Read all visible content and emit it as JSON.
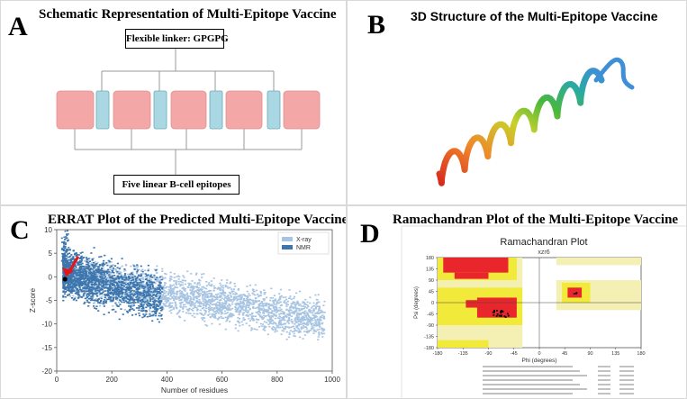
{
  "panels": {
    "a": {
      "letter": "A",
      "title": "Schematic Representation of Multi-Epitope Vaccine",
      "linker_label": "Flexible linker: GPGPG",
      "epitope_label": "Five linear B-cell epitopes",
      "colors": {
        "epitope": "#f4a7a7",
        "linker": "#a9d7e2"
      }
    },
    "b": {
      "letter": "B",
      "title": "3D Structure of the Multi-Epitope Vaccine"
    },
    "c": {
      "letter": "C",
      "title": "ERRAT Plot of the Predicted Multi-Epitope Vaccine",
      "chart_data": {
        "type": "scatter",
        "xlabel": "Number of residues",
        "ylabel": "Z-score",
        "xlim": [
          0,
          1000
        ],
        "ylim": [
          -20,
          10
        ],
        "x_ticks": [
          "0",
          "200",
          "400",
          "600",
          "800",
          "1000"
        ],
        "y_ticks": [
          "10",
          "5",
          "0",
          "-5",
          "-10",
          "-15",
          "-20"
        ],
        "legend_position": "top-right",
        "series": [
          {
            "name": "X-ray",
            "color": "#a7c4e2"
          },
          {
            "name": "NMR",
            "color": "#3d76ad"
          }
        ],
        "highlight_point": {
          "x": 30,
          "y": -0.5
        }
      }
    },
    "d": {
      "letter": "D",
      "title": "Ramachandran Plot of the Multi-Epitope Vaccine",
      "chart_data": {
        "type": "heatmap",
        "title": "Ramachandran Plot",
        "subtitle": "xzr6",
        "xlabel": "Phi (degrees)",
        "ylabel": "Psi (degrees)",
        "xlim": [
          -180,
          180
        ],
        "ylim": [
          -180,
          180
        ],
        "x_ticks": [
          "-180",
          "-135",
          "-90",
          "-45",
          "0",
          "45",
          "90",
          "135",
          "180"
        ],
        "y_ticks": [
          "180",
          "135",
          "90",
          "45",
          "0",
          "-45",
          "-90",
          "-135",
          "-180"
        ],
        "colors": {
          "core": "#e8262b",
          "allowed": "#f1ea3a",
          "generous": "#f4f0b4",
          "disallowed": "#ffffff"
        }
      }
    }
  }
}
